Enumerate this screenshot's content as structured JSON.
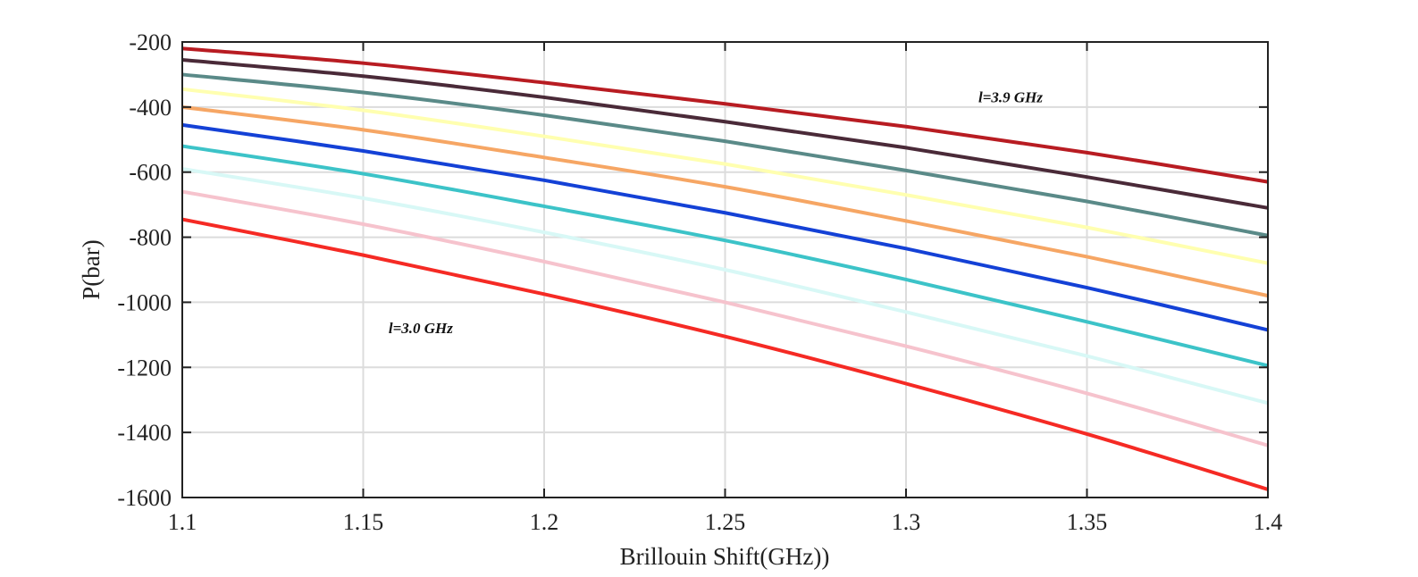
{
  "chart_data": {
    "type": "line",
    "title": "",
    "xlabel": "Brillouin Shift(GHz))",
    "ylabel": "P(bar)",
    "xlim": [
      1.1,
      1.4
    ],
    "ylim": [
      -1600,
      -200
    ],
    "xticks": [
      1.1,
      1.15,
      1.2,
      1.25,
      1.3,
      1.35,
      1.4
    ],
    "xtick_labels": [
      "1.1",
      "1.15",
      "1.2",
      "1.25",
      "1.3",
      "1.35",
      "1.4"
    ],
    "yticks": [
      -200,
      -400,
      -600,
      -800,
      -1000,
      -1200,
      -1400,
      -1600
    ],
    "ytick_labels": [
      "-200",
      "-400",
      "-600",
      "-800",
      "-1000",
      "-1200",
      "-1400",
      "-1600"
    ],
    "grid": true,
    "x": [
      1.1,
      1.15,
      1.2,
      1.25,
      1.3,
      1.35,
      1.4
    ],
    "series": [
      {
        "color": "#b81c22",
        "values": [
          -220,
          -265,
          -325,
          -390,
          -460,
          -540,
          -630
        ]
      },
      {
        "color": "#4a2a38",
        "values": [
          -255,
          -305,
          -370,
          -445,
          -525,
          -615,
          -710
        ]
      },
      {
        "color": "#5a8a88",
        "values": [
          -300,
          -355,
          -425,
          -505,
          -595,
          -690,
          -795
        ]
      },
      {
        "color": "#ffffb0",
        "values": [
          -345,
          -410,
          -490,
          -575,
          -670,
          -770,
          -880
        ]
      },
      {
        "color": "#f6a664",
        "values": [
          -400,
          -470,
          -555,
          -645,
          -750,
          -860,
          -980
        ]
      },
      {
        "color": "#1441d6",
        "values": [
          -455,
          -535,
          -625,
          -725,
          -835,
          -955,
          -1085
        ]
      },
      {
        "color": "#3cc3c8",
        "values": [
          -520,
          -605,
          -705,
          -810,
          -930,
          -1060,
          -1195
        ]
      },
      {
        "color": "#d8f8f6",
        "values": [
          -590,
          -680,
          -785,
          -900,
          -1030,
          -1165,
          -1310
        ]
      },
      {
        "color": "#f6c3cd",
        "values": [
          -660,
          -760,
          -875,
          -1000,
          -1135,
          -1280,
          -1440
        ]
      },
      {
        "color": "#f52a24",
        "values": [
          -745,
          -855,
          -975,
          -1105,
          -1250,
          -1405,
          -1575
        ]
      }
    ],
    "annotations": [
      {
        "text": "l=3.9 GHz",
        "x": 1.32,
        "y": -385
      },
      {
        "text": "l=3.0 GHz",
        "x": 1.157,
        "y": -1095
      }
    ]
  }
}
